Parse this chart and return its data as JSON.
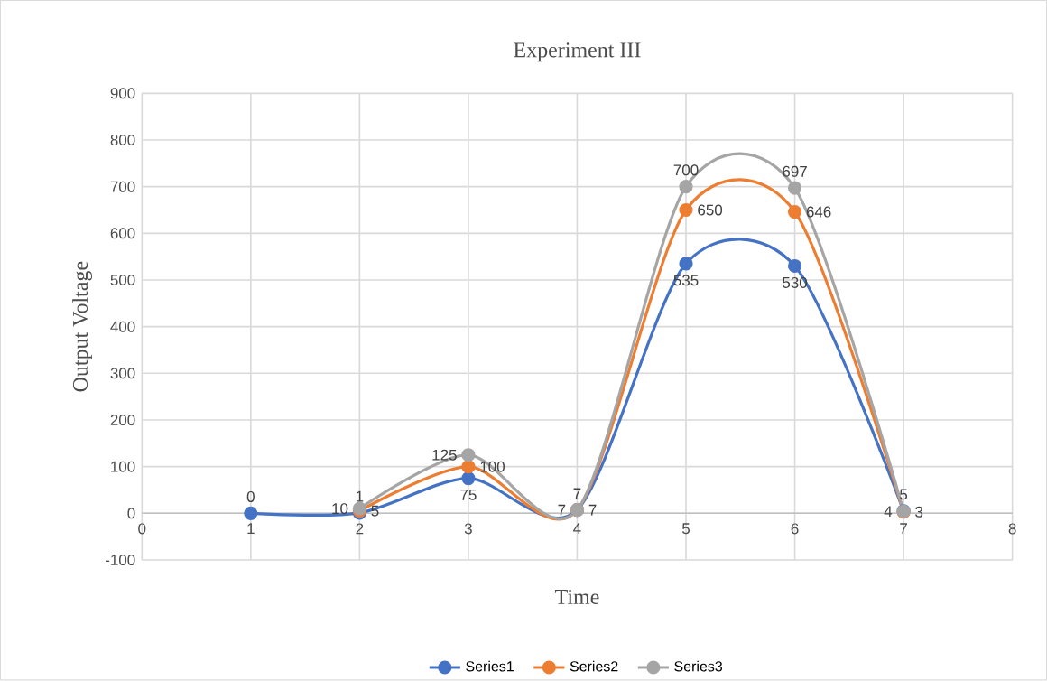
{
  "chart_data": {
    "type": "line",
    "title": "Experiment III",
    "xlabel": "Time",
    "ylabel": "Output Voltage",
    "series": [
      {
        "name": "Series1",
        "color": "#4472c4",
        "x": [
          1,
          2,
          3,
          4,
          5,
          6,
          7
        ],
        "values": [
          0,
          1,
          75,
          7,
          535,
          530,
          5
        ]
      },
      {
        "name": "Series2",
        "color": "#ed7d31",
        "x": [
          2,
          3,
          4,
          5,
          6,
          7
        ],
        "values": [
          5,
          100,
          7,
          650,
          646,
          3
        ]
      },
      {
        "name": "Series3",
        "color": "#a5a5a5",
        "x": [
          2,
          3,
          4,
          5,
          6,
          7
        ],
        "values": [
          10,
          125,
          7,
          700,
          697,
          4
        ]
      }
    ],
    "xlim": [
      0,
      8
    ],
    "xticks": [
      0,
      1,
      2,
      3,
      4,
      5,
      6,
      7,
      8
    ],
    "ylim": [
      -100,
      900
    ],
    "yticks": [
      -100,
      0,
      100,
      200,
      300,
      400,
      500,
      600,
      700,
      800,
      900
    ],
    "grid": true,
    "legend": "bottom",
    "marker": "circle",
    "line_style": "solid",
    "data_labels": true
  }
}
